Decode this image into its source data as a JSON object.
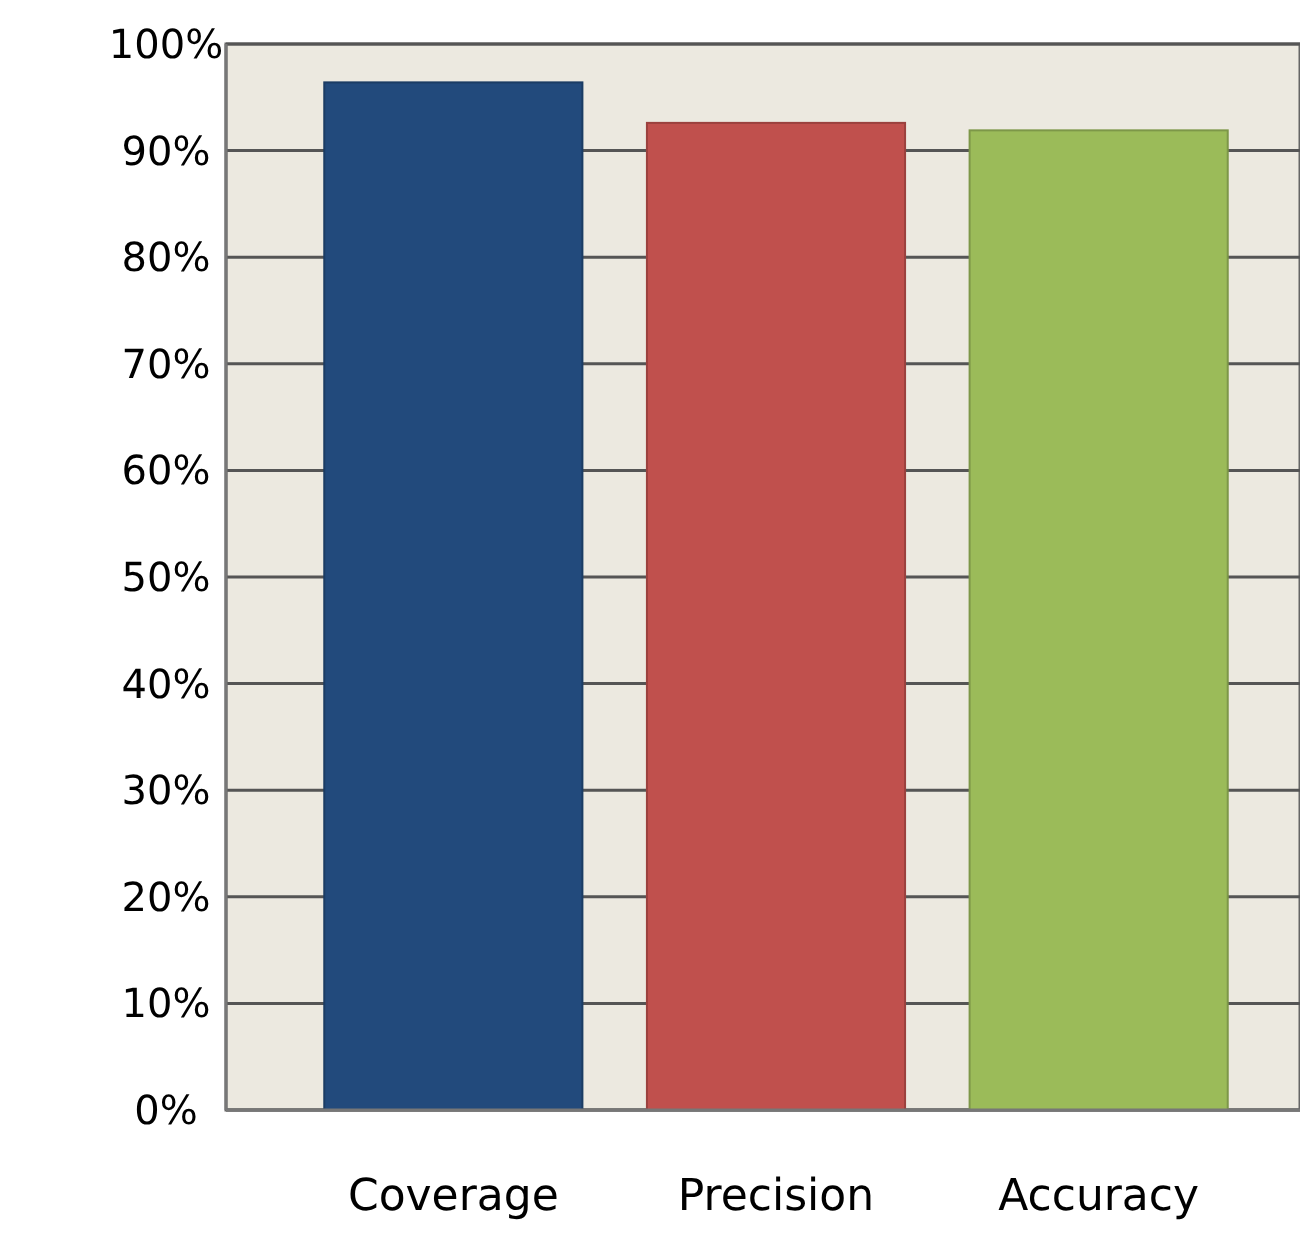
{
  "chart_data": {
    "type": "bar",
    "categories": [
      "Coverage",
      "Precision",
      "Accuracy"
    ],
    "values": [
      96.4,
      92.6,
      91.9
    ],
    "colors": [
      "#224a7c",
      "#c0504d",
      "#9bbb59"
    ],
    "ylim": [
      0,
      100
    ],
    "yticks": [
      {
        "value": 0,
        "label": "0%"
      },
      {
        "value": 10,
        "label": "10%"
      },
      {
        "value": 20,
        "label": "20%"
      },
      {
        "value": 30,
        "label": "30%"
      },
      {
        "value": 40,
        "label": "40%"
      },
      {
        "value": 50,
        "label": "50%"
      },
      {
        "value": 60,
        "label": "60%"
      },
      {
        "value": 70,
        "label": "70%"
      },
      {
        "value": 80,
        "label": "80%"
      },
      {
        "value": 90,
        "label": "90%"
      },
      {
        "value": 100,
        "label": "100%"
      }
    ],
    "grid": "y"
  }
}
